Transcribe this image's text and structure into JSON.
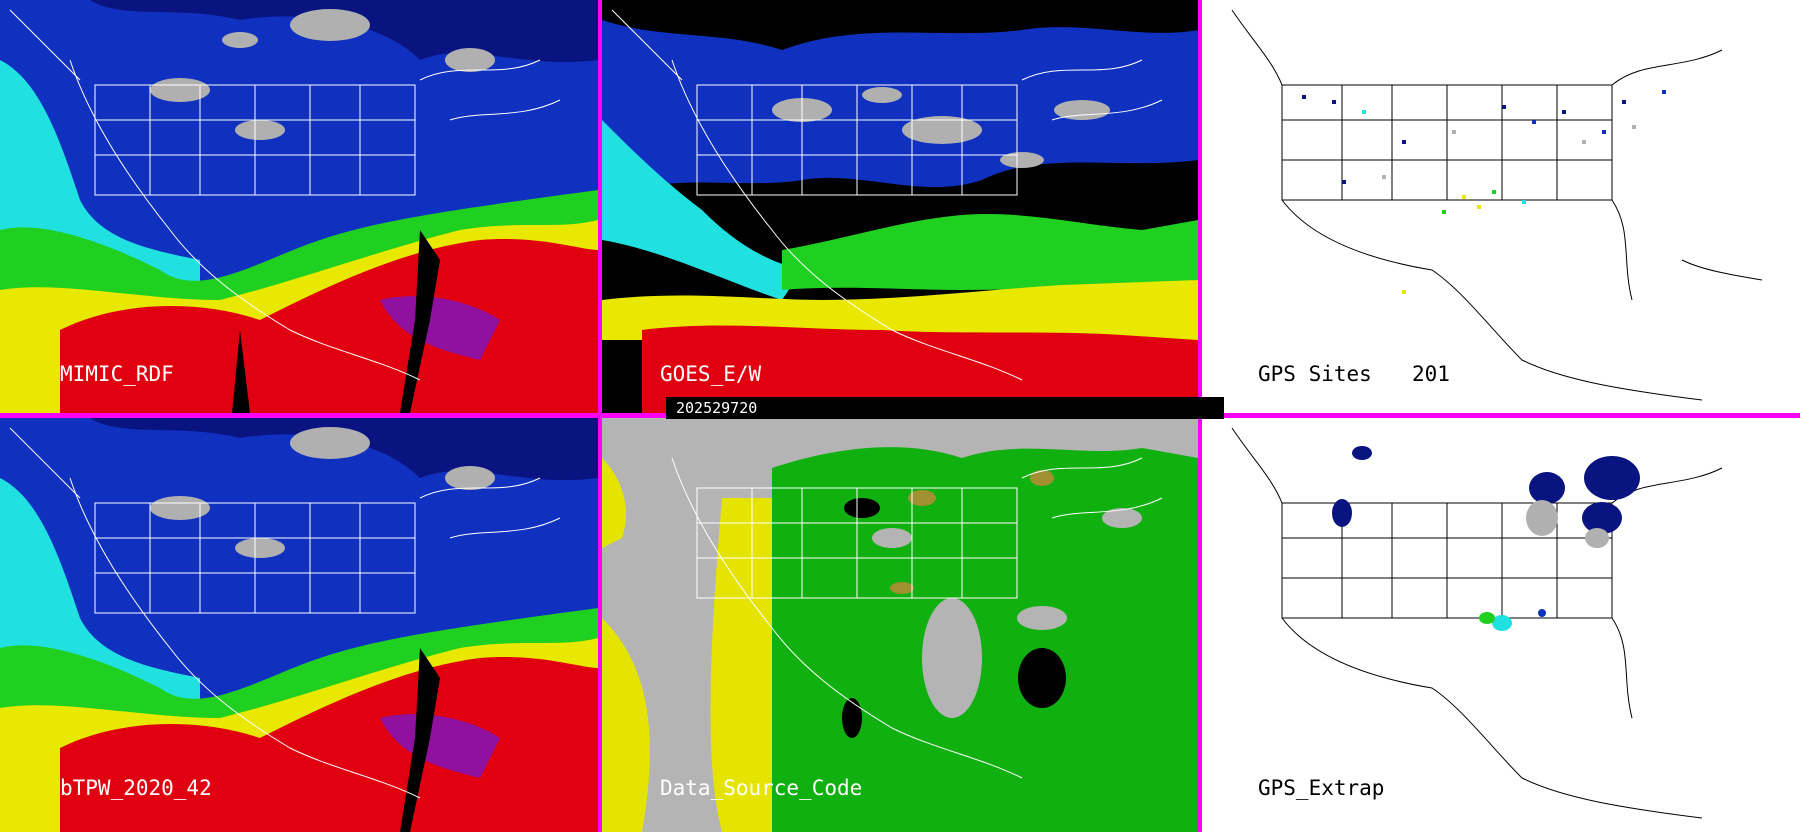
{
  "panels": [
    {
      "id": "p1",
      "label": "MIMIC_RDF"
    },
    {
      "id": "p2",
      "label": "GOES_E/W"
    },
    {
      "id": "p3",
      "label": "GPS Sites",
      "count": "201"
    },
    {
      "id": "p4",
      "label": "bTPW_2020_42"
    },
    {
      "id": "p5",
      "label": "Data_Source_Code"
    },
    {
      "id": "p6",
      "label": "GPS_Extrap"
    }
  ],
  "timestamp": "202529720",
  "colors": {
    "divider": "#ff00ff",
    "precip_red": "#e00010",
    "precip_yellow": "#e8e800",
    "precip_green": "#20d020",
    "precip_cyan": "#20e0e0",
    "precip_blue": "#1030c0",
    "precip_navy": "#0a1480",
    "cloud_gray": "#b0b0b0",
    "source_gray": "#b4b4b4",
    "source_yellow": "#e4e400",
    "source_green": "#10b010"
  }
}
